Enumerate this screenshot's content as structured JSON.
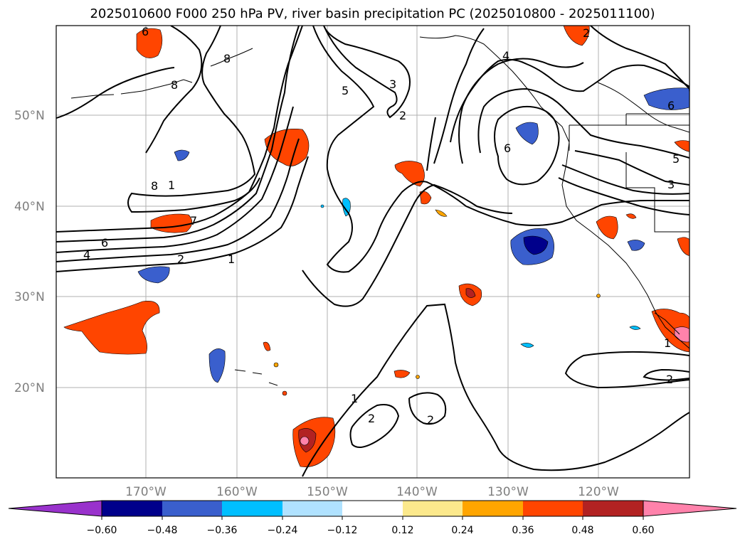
{
  "title": "2025010600 F000 250 hPa PV, river basin precipitation PC (2025010800 - 2025011100)",
  "map": {
    "lat_labels": [
      "50°N",
      "40°N",
      "30°N",
      "20°N"
    ],
    "lon_labels": [
      "170°W",
      "160°W",
      "150°W",
      "140°W",
      "130°W",
      "120°W"
    ],
    "contour_labels": [
      "6",
      "8",
      "8",
      "5",
      "3",
      "2",
      "4",
      "6",
      "5",
      "3",
      "8",
      "7",
      "6",
      "4",
      "2",
      "1",
      "1",
      "2",
      "2",
      "1",
      "2",
      "6",
      "1",
      "2"
    ]
  },
  "colorbar": {
    "ticks": [
      "−0.60",
      "−0.48",
      "−0.36",
      "−0.24",
      "−0.12",
      "0.12",
      "0.24",
      "0.36",
      "0.48",
      "0.60"
    ],
    "colors": [
      "#9932cc",
      "#00008b",
      "#3a5fcd",
      "#00bfff",
      "#b0e2ff",
      "#ffffff",
      "#fce98c",
      "#ffa500",
      "#ff4500",
      "#b22222",
      "#ff82ab"
    ]
  }
}
